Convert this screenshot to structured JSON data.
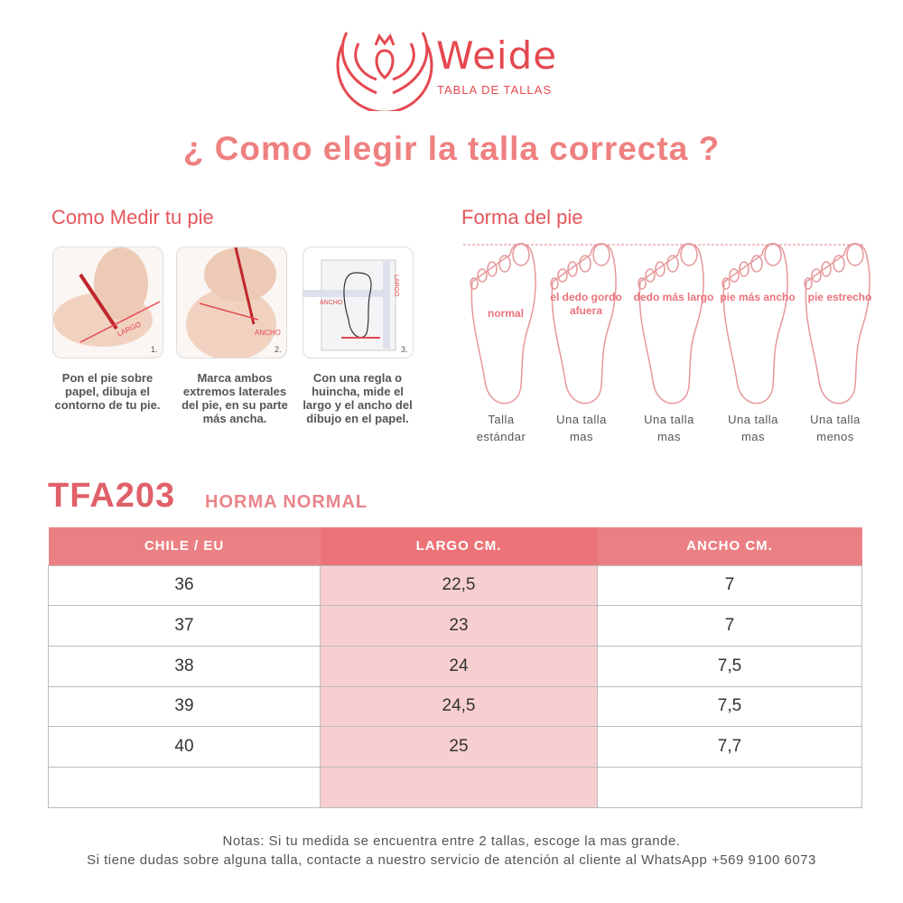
{
  "brand": {
    "name": "Weide",
    "subtitle": "TABLA DE TALLAS",
    "color": "#e5484f"
  },
  "title": "¿ Como elegir la talla correcta ?",
  "measure": {
    "heading": "Como Medir tu pie",
    "steps": [
      {
        "num": "1.",
        "label": "LARGO",
        "caption": "Pon el pie sobre papel, dibuja el contorno de tu pie."
      },
      {
        "num": "2.",
        "label": "ANCHO",
        "caption": "Marca ambos extremos laterales del pie, en su parte más ancha."
      },
      {
        "num": "3.",
        "label": "ANCHO",
        "label2": "LARGO",
        "caption": "Con una regla o huincha, mide el largo y el ancho del dibujo en el papel."
      }
    ]
  },
  "shape": {
    "heading": "Forma del pie",
    "feet": [
      {
        "label": "normal",
        "caption1": "Talla",
        "caption2": "estándar"
      },
      {
        "label": "el dedo gordo afuera",
        "caption1": "Una talla",
        "caption2": "mas"
      },
      {
        "label": "dedo más largo",
        "caption1": "Una talla",
        "caption2": "mas"
      },
      {
        "label": "pie más ancho",
        "caption1": "Una talla",
        "caption2": "mas"
      },
      {
        "label": "pie estrecho",
        "caption1": "Una talla",
        "caption2": "menos"
      }
    ]
  },
  "model": {
    "code": "TFA203",
    "horma": "HORMA NORMAL"
  },
  "table": {
    "headers": [
      "CHILE / EU",
      "LARGO CM.",
      "ANCHO CM."
    ],
    "rows": [
      [
        "36",
        "22,5",
        "7"
      ],
      [
        "37",
        "23",
        "7"
      ],
      [
        "38",
        "24",
        "7,5"
      ],
      [
        "39",
        "24,5",
        "7,5"
      ],
      [
        "40",
        "25",
        "7,7"
      ],
      [
        "",
        "",
        ""
      ]
    ]
  },
  "notes": [
    "Notas: Si tu medida se encuentra entre 2 tallas, escoge la mas grande.",
    "Si tiene dudas sobre alguna talla, contacte a nuestro servicio de atención al cliente al WhatsApp +569 9100 6073"
  ],
  "colors": {
    "accent": "#ef8080",
    "header": "#eb8084",
    "highlight": "#f8cfd1"
  }
}
